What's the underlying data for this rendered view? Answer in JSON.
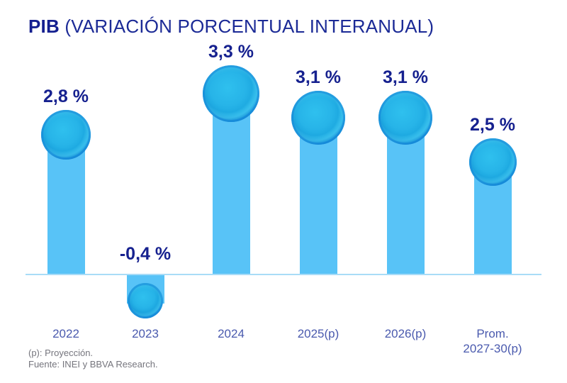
{
  "title": {
    "bold": "PIB",
    "rest": " (VARIACIÓN PORCENTUAL INTERANUAL)"
  },
  "footnotes": {
    "line1": "(p): Proyección.",
    "line2": "Fuente: INEI y BBVA Research."
  },
  "colors": {
    "title_navy": "#1b2a96",
    "value_label_navy": "#16218f",
    "category_blue": "#4a5aae",
    "bar_sky_blue": "#58c3f7",
    "bubble_blue": "#1fade6",
    "bubble_rim_blue": "#0b76cc",
    "axis_light_blue": "#a9dcf7",
    "footnote_gray": "#75757d"
  },
  "chart_data": {
    "type": "bar",
    "title": "PIB (VARIACIÓN PORCENTUAL INTERANUAL)",
    "categories": [
      "2022",
      "2023",
      "2024",
      "2025(p)",
      "2026(p)",
      "Prom. 2027-30(p)"
    ],
    "category_lines": [
      [
        "2022"
      ],
      [
        "2023"
      ],
      [
        "2024"
      ],
      [
        "2025(p)"
      ],
      [
        "2026(p)"
      ],
      [
        "Prom.",
        "2027-30(p)"
      ]
    ],
    "values": [
      2.8,
      -0.4,
      3.3,
      3.1,
      3.1,
      2.5
    ],
    "value_labels": [
      "2,8 %",
      "-0,4 %",
      "3,3 %",
      "3,1 %",
      "3,1 %",
      "2,5 %"
    ],
    "xlabel": "",
    "ylabel": "",
    "ylim": [
      -0.8,
      3.6
    ],
    "grid": false,
    "legend": false,
    "bar_color": "#58c3f7",
    "marker": "glossy-circle"
  }
}
